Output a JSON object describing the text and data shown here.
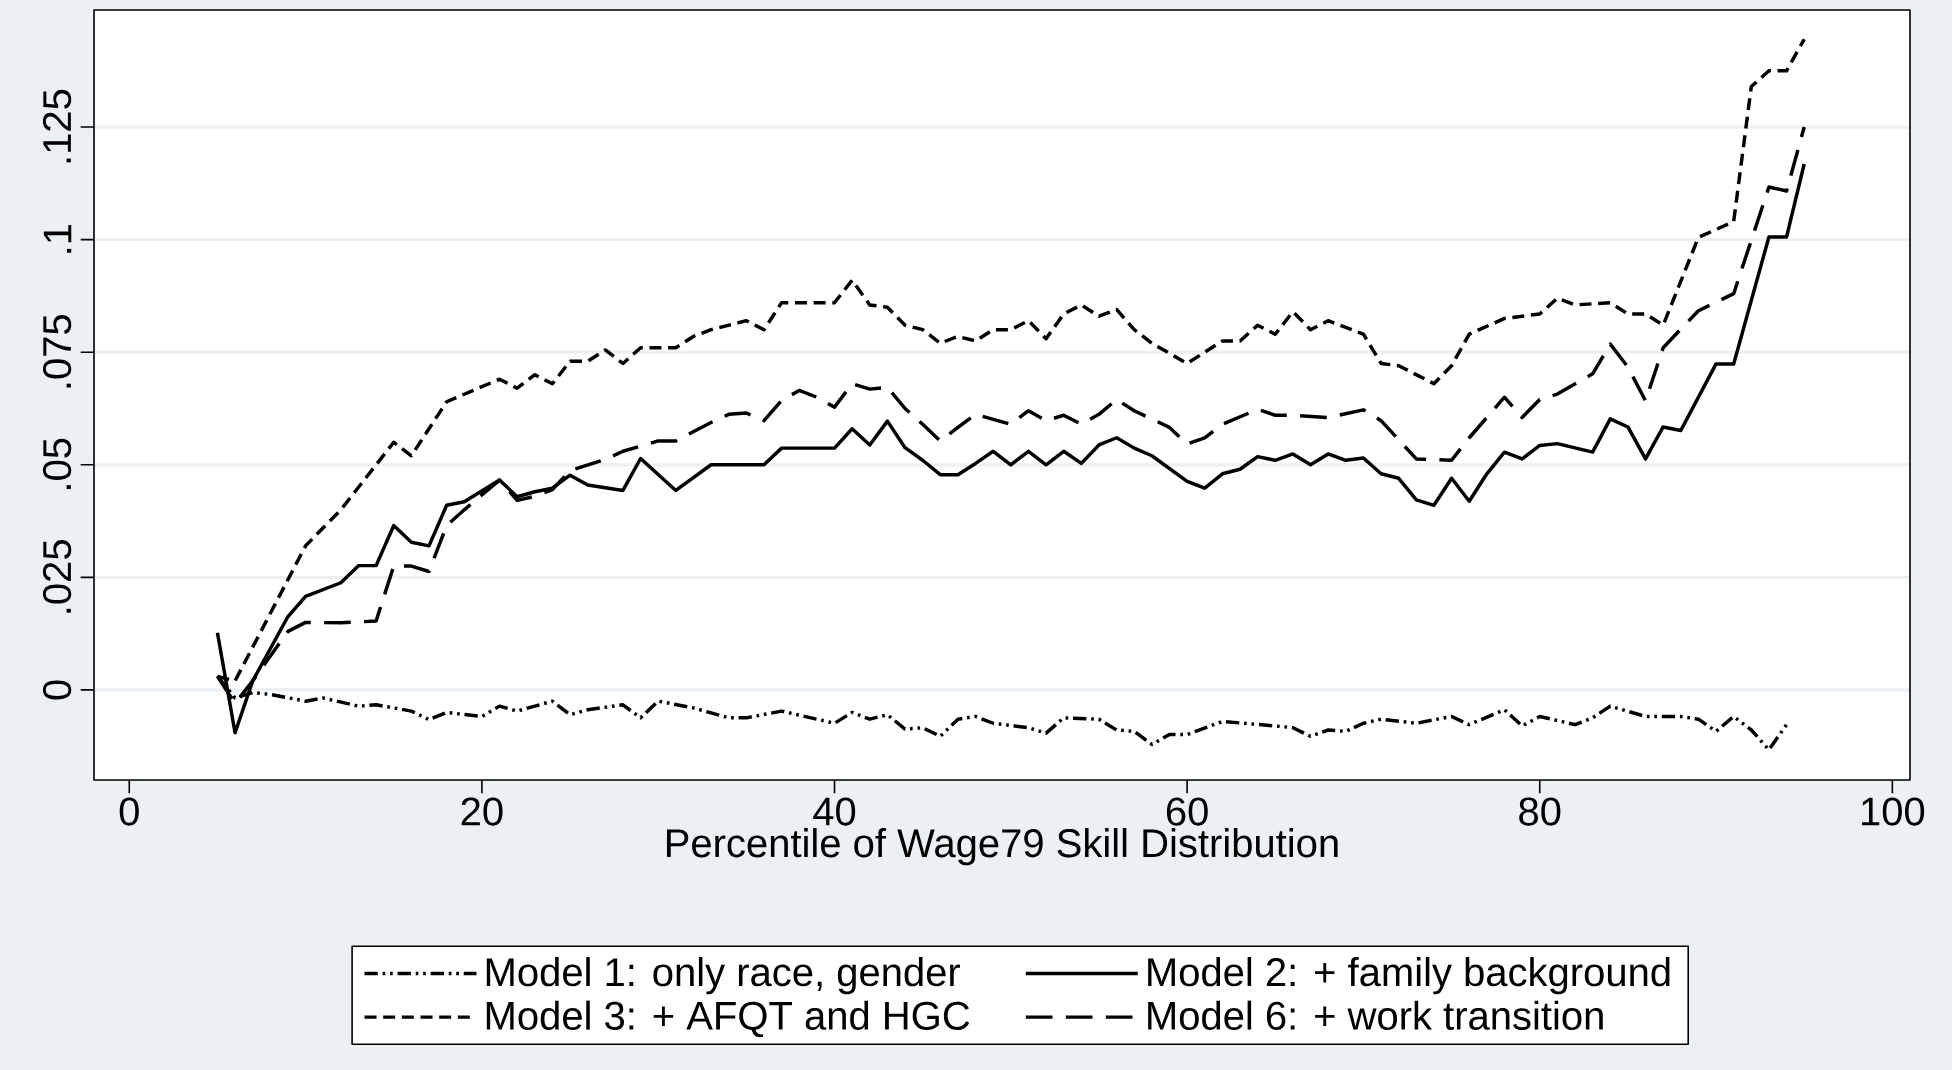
{
  "chart_data": {
    "type": "line",
    "xlabel": "Percentile of Wage79 Skill Distribution",
    "xlim": [
      -2,
      101
    ],
    "ylim": [
      -0.02,
      0.151
    ],
    "xticks": [
      0,
      20,
      40,
      60,
      80,
      100
    ],
    "yticks": [
      0,
      {
        "value": 0.025,
        "label": ".025"
      },
      {
        "value": 0.05,
        "label": ".05"
      },
      {
        "value": 0.075,
        "label": ".075"
      },
      {
        "value": 0.1,
        "label": ".1"
      },
      {
        "value": 0.125,
        "label": ".125"
      }
    ],
    "grid": "y",
    "legend": "bottom",
    "series": [
      {
        "name": "Model 1: only race, gender",
        "color": "#000000",
        "line_style": "dashdotdot",
        "x": [
          5,
          6,
          7,
          8,
          10,
          11,
          13,
          14,
          16,
          17,
          18,
          20,
          21,
          22,
          24,
          25,
          26,
          28,
          29,
          30,
          32,
          34,
          35,
          37,
          40,
          41,
          42,
          43,
          44,
          45,
          46,
          47,
          48,
          49,
          51,
          52,
          53,
          55,
          56,
          57,
          58,
          59,
          60,
          62,
          65,
          66,
          67,
          68,
          69,
          70,
          71,
          73,
          75,
          76,
          78,
          79,
          80,
          82,
          83,
          84,
          86,
          88,
          89,
          90,
          91,
          92,
          93,
          94
        ],
        "values": [
          0.0031,
          -0.0018,
          -0.0006,
          -0.001,
          -0.0025,
          -0.0018,
          -0.0036,
          -0.0033,
          -0.0047,
          -0.0066,
          -0.005,
          -0.0059,
          -0.0036,
          -0.0047,
          -0.0025,
          -0.0055,
          -0.0044,
          -0.0033,
          -0.0062,
          -0.0025,
          -0.004,
          -0.0062,
          -0.0062,
          -0.0047,
          -0.0074,
          -0.005,
          -0.0065,
          -0.0055,
          -0.0087,
          -0.0084,
          -0.0103,
          -0.0065,
          -0.0059,
          -0.0074,
          -0.0084,
          -0.0096,
          -0.0062,
          -0.0065,
          -0.0089,
          -0.0092,
          -0.0121,
          -0.0099,
          -0.0099,
          -0.007,
          -0.008,
          -0.0084,
          -0.0103,
          -0.0089,
          -0.0092,
          -0.0074,
          -0.0065,
          -0.0074,
          -0.0059,
          -0.0077,
          -0.0044,
          -0.008,
          -0.0059,
          -0.0077,
          -0.0062,
          -0.0036,
          -0.0059,
          -0.0059,
          -0.0065,
          -0.0092,
          -0.0059,
          -0.0089,
          -0.0133,
          -0.0077
        ]
      },
      {
        "name": "Model 2: + family background",
        "color": "#000000",
        "line_style": "solid",
        "x": [
          5,
          6,
          7,
          9,
          10,
          12,
          13,
          14,
          15,
          16,
          17,
          18,
          19,
          21,
          22,
          23,
          24,
          25,
          26,
          28,
          29,
          31,
          33,
          35,
          36,
          37,
          40,
          41,
          42,
          43,
          44,
          45,
          46,
          47,
          48,
          49,
          50,
          51,
          52,
          53,
          54,
          55,
          56,
          57,
          58,
          60,
          61,
          62,
          63,
          64,
          65,
          66,
          67,
          68,
          69,
          70,
          71,
          72,
          73,
          74,
          75,
          76,
          77,
          78,
          79,
          80,
          81,
          83,
          84,
          85,
          86,
          87,
          88,
          90,
          91,
          93,
          94,
          95
        ],
        "values": [
          0.0127,
          -0.0095,
          0.002,
          0.0163,
          0.0208,
          0.0238,
          0.0276,
          0.0276,
          0.0365,
          0.0328,
          0.032,
          0.041,
          0.0418,
          0.0466,
          0.0429,
          0.044,
          0.0448,
          0.0477,
          0.0455,
          0.0443,
          0.0514,
          0.0443,
          0.05,
          0.05,
          0.05,
          0.0537,
          0.0537,
          0.058,
          0.0544,
          0.0597,
          0.0538,
          0.051,
          0.0478,
          0.0478,
          0.0503,
          0.053,
          0.05,
          0.053,
          0.05,
          0.053,
          0.0503,
          0.0544,
          0.056,
          0.0537,
          0.052,
          0.0463,
          0.0448,
          0.048,
          0.049,
          0.0518,
          0.051,
          0.0524,
          0.05,
          0.0524,
          0.051,
          0.0515,
          0.048,
          0.047,
          0.0422,
          0.041,
          0.047,
          0.0419,
          0.048,
          0.0528,
          0.0513,
          0.0543,
          0.0547,
          0.0528,
          0.0602,
          0.0584,
          0.0513,
          0.0584,
          0.0576,
          0.0724,
          0.0724,
          0.1006,
          0.1006,
          0.1168
        ]
      },
      {
        "name": "Model 3: + AFQT and HGC",
        "color": "#000000",
        "line_style": "dashed",
        "x": [
          5,
          6,
          8,
          10,
          12,
          15,
          16,
          18,
          21,
          22,
          23,
          24,
          25,
          26,
          27,
          28,
          29,
          31,
          32,
          33,
          35,
          36,
          37,
          40,
          41,
          42,
          43,
          44,
          45,
          46,
          47,
          48,
          49,
          50,
          51,
          52,
          53,
          54,
          55,
          56,
          57,
          58,
          60,
          62,
          63,
          64,
          65,
          66,
          67,
          68,
          70,
          71,
          72,
          74,
          75,
          76,
          78,
          80,
          81,
          82,
          84,
          85,
          86,
          87,
          89,
          91,
          92,
          93,
          94,
          95
        ],
        "values": [
          0.003,
          0.002,
          0.017,
          0.032,
          0.04,
          0.055,
          0.052,
          0.064,
          0.069,
          0.067,
          0.07,
          0.068,
          0.073,
          0.073,
          0.0755,
          0.0725,
          0.076,
          0.076,
          0.0785,
          0.08,
          0.082,
          0.08,
          0.086,
          0.086,
          0.091,
          0.0855,
          0.085,
          0.081,
          0.08,
          0.077,
          0.0785,
          0.0775,
          0.08,
          0.08,
          0.082,
          0.078,
          0.0835,
          0.0855,
          0.083,
          0.0845,
          0.08,
          0.077,
          0.0725,
          0.0775,
          0.0775,
          0.081,
          0.079,
          0.084,
          0.08,
          0.082,
          0.079,
          0.0725,
          0.072,
          0.068,
          0.072,
          0.079,
          0.0825,
          0.0835,
          0.087,
          0.0855,
          0.086,
          0.0835,
          0.0835,
          0.081,
          0.1005,
          0.104,
          0.134,
          0.1375,
          0.1375,
          0.1445
        ]
      },
      {
        "name": "Model 6: + work transition",
        "color": "#000000",
        "line_style": "longdash",
        "x": [
          5,
          6,
          7,
          9,
          10,
          12,
          14,
          15,
          16,
          17,
          18,
          19,
          21,
          22,
          23,
          24,
          25,
          27,
          28,
          30,
          31,
          33,
          34,
          35,
          36,
          37,
          38,
          39,
          40,
          41,
          42,
          43,
          44,
          45,
          46,
          47,
          48,
          50,
          51,
          52,
          53,
          54,
          55,
          56,
          57,
          59,
          60,
          61,
          62,
          64,
          65,
          66,
          68,
          70,
          71,
          73,
          75,
          76,
          78,
          79,
          80,
          81,
          83,
          84,
          85,
          86,
          87,
          89,
          91,
          93,
          94,
          95
        ],
        "values": [
          0.003,
          -0.003,
          0.002,
          0.013,
          0.015,
          0.0149,
          0.0153,
          0.0275,
          0.0275,
          0.0263,
          0.0365,
          0.04,
          0.0466,
          0.0421,
          0.043,
          0.0445,
          0.0487,
          0.0512,
          0.053,
          0.0553,
          0.0553,
          0.0594,
          0.0612,
          0.0615,
          0.0598,
          0.0643,
          0.0665,
          0.065,
          0.0628,
          0.068,
          0.0668,
          0.0672,
          0.0625,
          0.059,
          0.0553,
          0.0583,
          0.0612,
          0.059,
          0.062,
          0.0598,
          0.061,
          0.059,
          0.0612,
          0.0645,
          0.062,
          0.0583,
          0.0546,
          0.056,
          0.059,
          0.0623,
          0.061,
          0.061,
          0.0605,
          0.0622,
          0.0598,
          0.0513,
          0.051,
          0.056,
          0.065,
          0.0605,
          0.0645,
          0.0657,
          0.0702,
          0.0768,
          0.0717,
          0.0642,
          0.076,
          0.0842,
          0.088,
          0.1117,
          0.1108,
          0.125
        ]
      }
    ]
  }
}
